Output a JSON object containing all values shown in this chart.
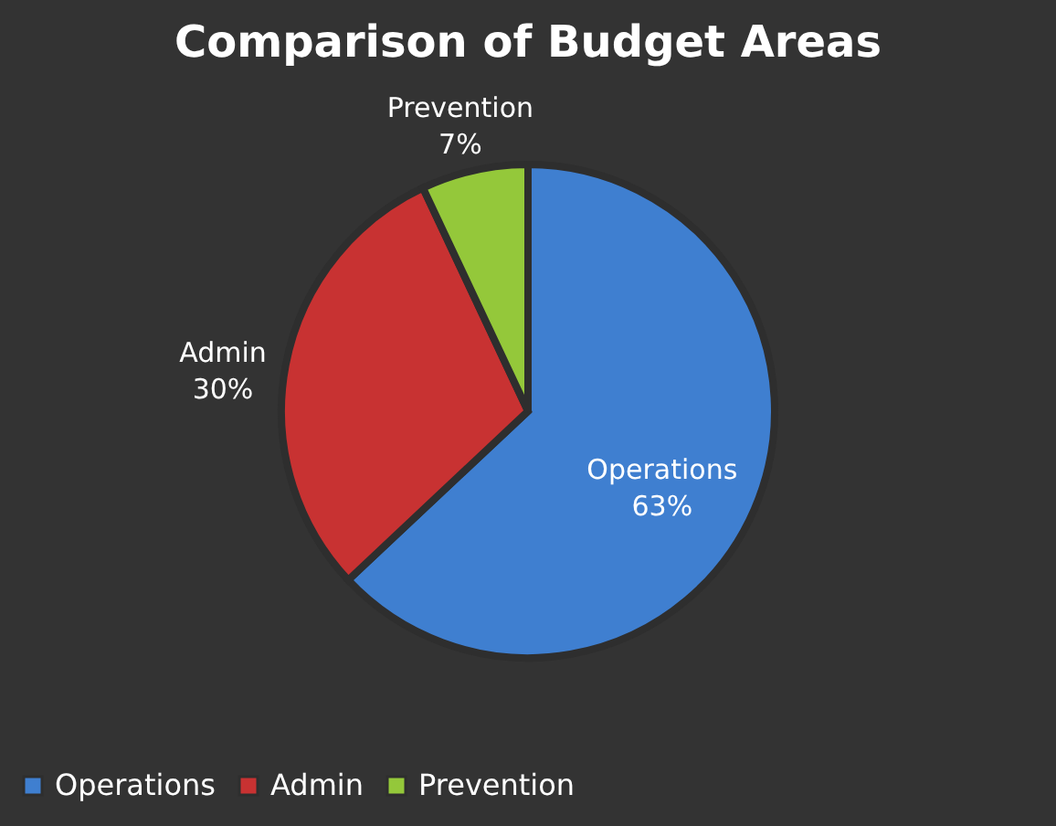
{
  "chart_data": {
    "type": "pie",
    "title": "Comparison of Budget Areas",
    "categories": [
      "Operations",
      "Admin",
      "Prevention"
    ],
    "values": [
      63,
      30,
      7
    ],
    "colors": [
      "#3f7fd0",
      "#c83232",
      "#94c83a"
    ],
    "value_labels": [
      "63%",
      "30%",
      "7%"
    ],
    "legend": "bottom"
  }
}
